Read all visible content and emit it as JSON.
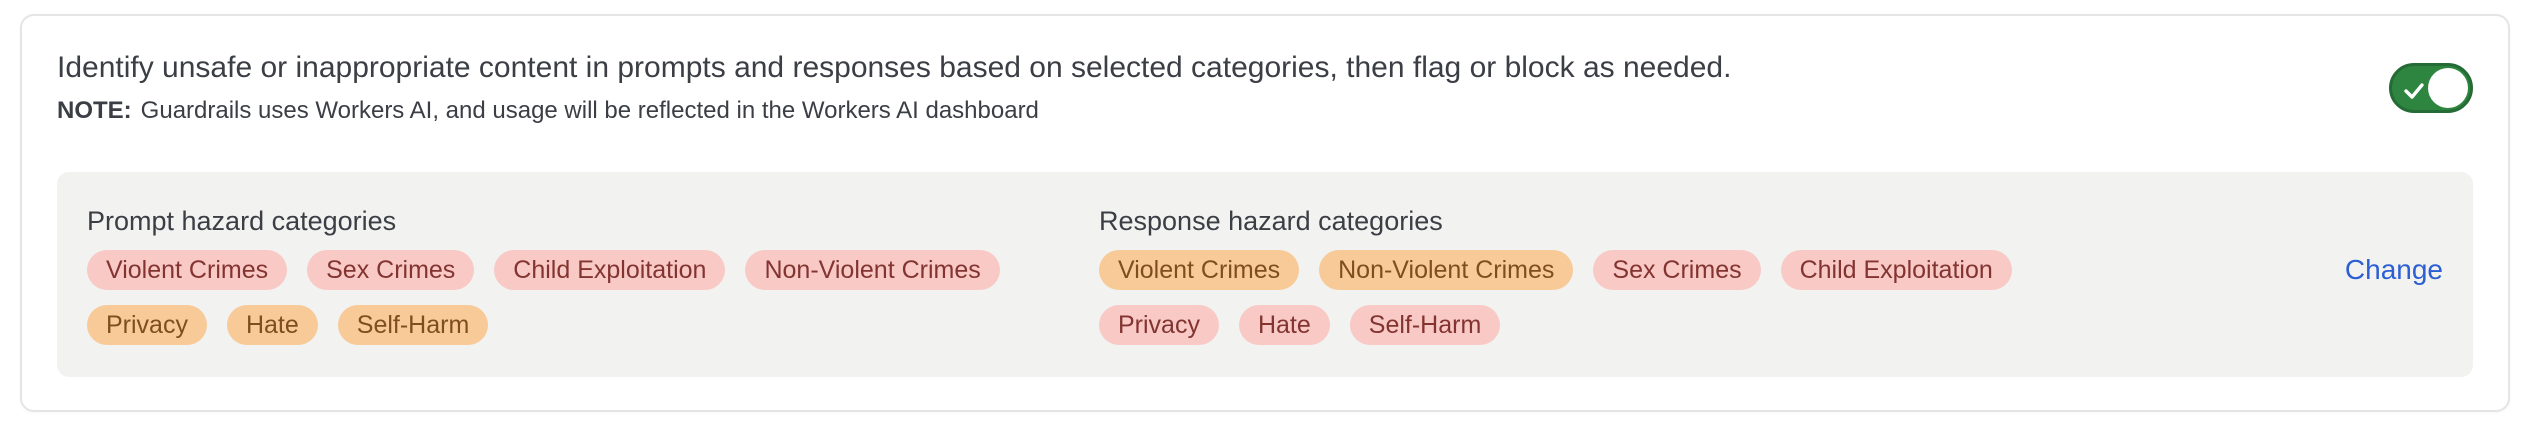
{
  "card": {
    "description": "Identify unsafe or inappropriate content in prompts and responses based on selected categories, then flag or block as needed.",
    "note_label": "NOTE:",
    "note_text": "Guardrails uses Workers AI, and usage will be reflected in the Workers AI dashboard",
    "toggle": {
      "state": "on",
      "icon": "check-icon"
    }
  },
  "panel": {
    "prompt_heading": "Prompt hazard categories",
    "prompt_category_rows": [
      [
        {
          "label": "Violent Crimes",
          "variant": "red"
        },
        {
          "label": "Sex Crimes",
          "variant": "red"
        },
        {
          "label": "Child Exploitation",
          "variant": "red"
        },
        {
          "label": "Non-Violent Crimes",
          "variant": "red"
        }
      ],
      [
        {
          "label": "Privacy",
          "variant": "orange"
        },
        {
          "label": "Hate",
          "variant": "orange"
        },
        {
          "label": "Self-Harm",
          "variant": "orange"
        }
      ]
    ],
    "response_heading": "Response hazard categories",
    "response_category_rows": [
      [
        {
          "label": "Violent Crimes",
          "variant": "orange"
        },
        {
          "label": "Non-Violent Crimes",
          "variant": "orange"
        },
        {
          "label": "Sex Crimes",
          "variant": "red"
        },
        {
          "label": "Child Exploitation",
          "variant": "red"
        }
      ],
      [
        {
          "label": "Privacy",
          "variant": "red"
        },
        {
          "label": "Hate",
          "variant": "red"
        },
        {
          "label": "Self-Harm",
          "variant": "red"
        }
      ]
    ],
    "change_label": "Change"
  },
  "colors": {
    "toggle_on": "#2e8540",
    "toggle_border": "#256b36",
    "chip_red_bg": "#f8c9c5",
    "chip_red_text": "#833431",
    "chip_orange_bg": "#f7ca98",
    "chip_orange_text": "#7f4e1f",
    "link_blue": "#2b5fd3",
    "panel_bg": "#f2f2f1",
    "card_border": "#e5e5e5",
    "text": "#3b3e44"
  }
}
